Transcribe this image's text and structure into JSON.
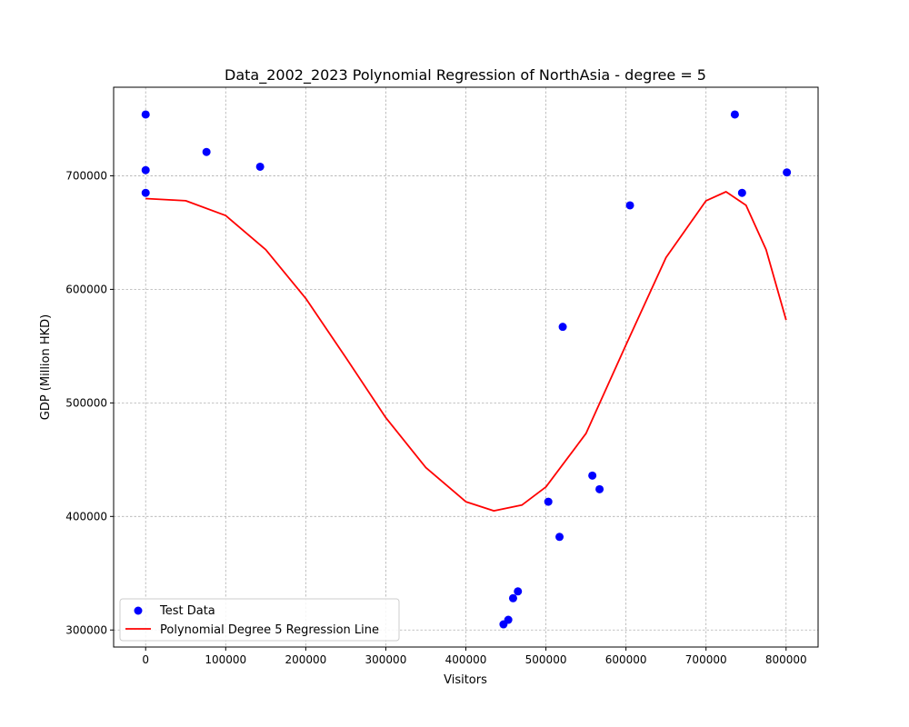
{
  "chart_data": {
    "type": "scatter",
    "title": "Data_2002_2023 Polynomial Regression of NorthAsia - degree = 5",
    "xlabel": "Visitors",
    "ylabel": "GDP (Million HKD)",
    "xlim": [
      -40000,
      840000
    ],
    "ylim": [
      285000,
      778000
    ],
    "xticks": [
      0,
      100000,
      200000,
      300000,
      400000,
      500000,
      600000,
      700000,
      800000
    ],
    "yticks": [
      300000,
      400000,
      500000,
      600000,
      700000
    ],
    "grid": true,
    "legend_position": "lower-left",
    "series": [
      {
        "name": "Test Data",
        "kind": "scatter",
        "color": "#0000ff",
        "points": [
          [
            0,
            754000
          ],
          [
            0,
            705000
          ],
          [
            0,
            685000
          ],
          [
            76000,
            721000
          ],
          [
            143000,
            708000
          ],
          [
            447000,
            305000
          ],
          [
            453000,
            309000
          ],
          [
            459000,
            328000
          ],
          [
            465000,
            334000
          ],
          [
            503000,
            413000
          ],
          [
            517000,
            382000
          ],
          [
            521000,
            567000
          ],
          [
            558000,
            436000
          ],
          [
            567000,
            424000
          ],
          [
            605000,
            674000
          ],
          [
            736000,
            754000
          ],
          [
            745000,
            685000
          ],
          [
            801000,
            703000
          ]
        ]
      },
      {
        "name": "Polynomial Degree 5 Regression Line",
        "kind": "line",
        "color": "#ff0000",
        "points": [
          [
            0,
            680000
          ],
          [
            50000,
            678000
          ],
          [
            100000,
            665000
          ],
          [
            150000,
            635000
          ],
          [
            200000,
            592000
          ],
          [
            250000,
            540000
          ],
          [
            300000,
            487000
          ],
          [
            350000,
            443000
          ],
          [
            400000,
            413000
          ],
          [
            435000,
            405000
          ],
          [
            470000,
            410000
          ],
          [
            500000,
            426000
          ],
          [
            550000,
            473000
          ],
          [
            600000,
            551000
          ],
          [
            650000,
            628000
          ],
          [
            700000,
            678000
          ],
          [
            725000,
            686000
          ],
          [
            750000,
            674000
          ],
          [
            775000,
            635000
          ],
          [
            800000,
            573000
          ]
        ]
      }
    ]
  }
}
